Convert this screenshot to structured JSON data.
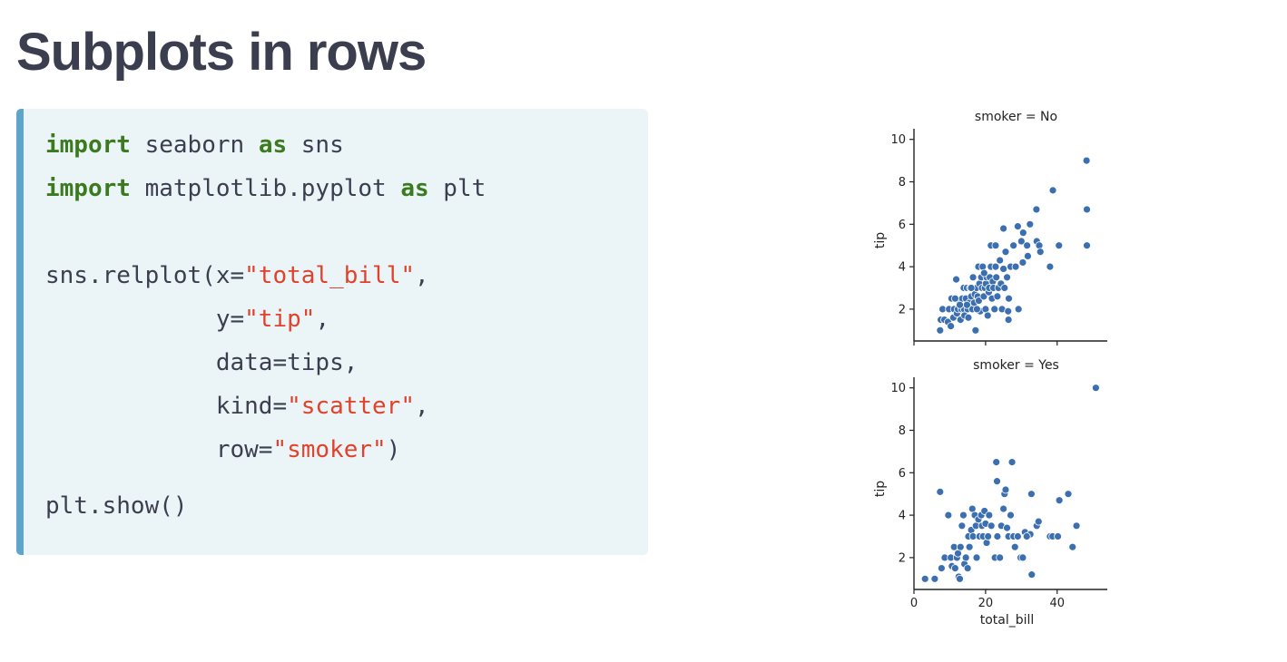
{
  "slide": {
    "title": "Subplots in rows"
  },
  "code": {
    "lines": [
      [
        {
          "t": "import",
          "c": "kw"
        },
        {
          "t": " seaborn "
        },
        {
          "t": "as",
          "c": "kw"
        },
        {
          "t": " sns"
        }
      ],
      [
        {
          "t": "import",
          "c": "kw"
        },
        {
          "t": " matplotlib.pyplot "
        },
        {
          "t": "as",
          "c": "kw"
        },
        {
          "t": " plt"
        }
      ],
      [],
      [
        {
          "t": "sns.relplot(x="
        },
        {
          "t": "\"total_bill\"",
          "c": "str"
        },
        {
          "t": ","
        }
      ],
      [
        {
          "t": "            y="
        },
        {
          "t": "\"tip\"",
          "c": "str"
        },
        {
          "t": ","
        }
      ],
      [
        {
          "t": "            data=tips,"
        }
      ],
      [
        {
          "t": "            kind="
        },
        {
          "t": "\"scatter\"",
          "c": "str"
        },
        {
          "t": ","
        }
      ],
      [
        {
          "t": "            row="
        },
        {
          "t": "\"smoker\"",
          "c": "str"
        },
        {
          "t": ")"
        }
      ],
      [
        {
          "t": "plt.show()"
        }
      ]
    ]
  },
  "colors": {
    "keyword": "#3b7a1f",
    "string": "#e2422b",
    "text": "#3b3e4f",
    "code_bg": "#ebf4f7",
    "code_border": "#5ea5c9",
    "point": "#3b6fb0"
  },
  "chart_data": [
    {
      "type": "scatter",
      "title": "smoker = No",
      "xlabel": "",
      "ylabel": "tip",
      "xlim": [
        0,
        54
      ],
      "ylim": [
        0.5,
        10.5
      ],
      "xticks": [
        0,
        20,
        40
      ],
      "xtick_labels_visible": false,
      "yticks": [
        2,
        4,
        6,
        8,
        10
      ],
      "points": [
        [
          7.3,
          1.0
        ],
        [
          7.5,
          1.5
        ],
        [
          8.5,
          1.5
        ],
        [
          8.0,
          2.0
        ],
        [
          9.5,
          1.4
        ],
        [
          9.8,
          2.0
        ],
        [
          10.3,
          1.2
        ],
        [
          10.5,
          2.5
        ],
        [
          11.0,
          1.6
        ],
        [
          11.2,
          2.0
        ],
        [
          11.8,
          3.4
        ],
        [
          12.0,
          1.8
        ],
        [
          12.3,
          2.0
        ],
        [
          12.6,
          2.4
        ],
        [
          13.0,
          1.5
        ],
        [
          13.3,
          2.0
        ],
        [
          13.5,
          2.5
        ],
        [
          13.9,
          3.0
        ],
        [
          14.0,
          2.0
        ],
        [
          14.1,
          1.7
        ],
        [
          14.5,
          2.5
        ],
        [
          14.8,
          3.0
        ],
        [
          15.0,
          2.0
        ],
        [
          15.2,
          1.6
        ],
        [
          15.5,
          2.3
        ],
        [
          15.7,
          3.0
        ],
        [
          16.0,
          2.6
        ],
        [
          16.3,
          2.0
        ],
        [
          16.5,
          3.5
        ],
        [
          16.8,
          2.3
        ],
        [
          17.0,
          2.7
        ],
        [
          17.2,
          1.0
        ],
        [
          17.5,
          3.0
        ],
        [
          17.8,
          2.6
        ],
        [
          18.0,
          4.0
        ],
        [
          18.1,
          2.4
        ],
        [
          18.3,
          3.2
        ],
        [
          18.5,
          1.9
        ],
        [
          18.8,
          3.5
        ],
        [
          19.0,
          3.0
        ],
        [
          19.2,
          4.0
        ],
        [
          19.5,
          2.6
        ],
        [
          19.8,
          3.0
        ],
        [
          20.0,
          2.0
        ],
        [
          20.1,
          3.2
        ],
        [
          20.3,
          3.5
        ],
        [
          20.6,
          1.7
        ],
        [
          20.9,
          2.8
        ],
        [
          21.0,
          3.0
        ],
        [
          21.2,
          3.5
        ],
        [
          21.5,
          4.0
        ],
        [
          21.8,
          2.5
        ],
        [
          22.0,
          3.3
        ],
        [
          22.2,
          3.0
        ],
        [
          22.5,
          2.0
        ],
        [
          22.8,
          4.0
        ],
        [
          23.0,
          3.5
        ],
        [
          23.3,
          2.6
        ],
        [
          23.6,
          3.0
        ],
        [
          24.0,
          4.3
        ],
        [
          24.3,
          3.2
        ],
        [
          24.6,
          2.0
        ],
        [
          25.0,
          3.9
        ],
        [
          25.3,
          3.0
        ],
        [
          25.6,
          4.7
        ],
        [
          26.0,
          3.5
        ],
        [
          26.3,
          1.9
        ],
        [
          26.5,
          2.5
        ],
        [
          27.0,
          4.0
        ],
        [
          21.5,
          5.0
        ],
        [
          22.8,
          5.0
        ],
        [
          25.0,
          5.8
        ],
        [
          26.4,
          1.5
        ],
        [
          27.8,
          5.0
        ],
        [
          28.4,
          4.0
        ],
        [
          29.2,
          2.0
        ],
        [
          29.0,
          5.9
        ],
        [
          30.0,
          5.2
        ],
        [
          30.5,
          5.6
        ],
        [
          30.4,
          4.2
        ],
        [
          31.6,
          5.0
        ],
        [
          31.8,
          4.5
        ],
        [
          32.4,
          6.0
        ],
        [
          34.2,
          6.7
        ],
        [
          34.3,
          5.2
        ],
        [
          35.0,
          5.0
        ],
        [
          35.3,
          4.7
        ],
        [
          38.0,
          4.0
        ],
        [
          38.8,
          7.6
        ],
        [
          40.5,
          5.0
        ],
        [
          48.2,
          9.0
        ],
        [
          48.3,
          6.7
        ],
        [
          48.3,
          5.0
        ],
        [
          16.0,
          3.0
        ],
        [
          14.8,
          2.2
        ],
        [
          17.6,
          2.0
        ],
        [
          19.6,
          3.7
        ],
        [
          12.8,
          2.2
        ],
        [
          11.5,
          2.5
        ]
      ]
    },
    {
      "type": "scatter",
      "title": "smoker = Yes",
      "xlabel": "total_bill",
      "ylabel": "tip",
      "xlim": [
        0,
        54
      ],
      "ylim": [
        0.5,
        10.5
      ],
      "xticks": [
        0,
        20,
        40
      ],
      "xtick_labels_visible": true,
      "yticks": [
        2,
        4,
        6,
        8,
        10
      ],
      "points": [
        [
          3.1,
          1.0
        ],
        [
          5.8,
          1.0
        ],
        [
          7.3,
          5.1
        ],
        [
          7.7,
          1.5
        ],
        [
          8.6,
          2.0
        ],
        [
          9.6,
          4.0
        ],
        [
          10.3,
          2.0
        ],
        [
          10.6,
          1.6
        ],
        [
          11.2,
          2.5
        ],
        [
          11.5,
          1.5
        ],
        [
          12.0,
          2.0
        ],
        [
          12.3,
          2.2
        ],
        [
          12.5,
          1.1
        ],
        [
          12.8,
          1.0
        ],
        [
          13.0,
          2.5
        ],
        [
          13.4,
          3.5
        ],
        [
          13.8,
          4.0
        ],
        [
          14.1,
          1.7
        ],
        [
          14.5,
          2.0
        ],
        [
          15.0,
          1.5
        ],
        [
          15.2,
          3.0
        ],
        [
          15.5,
          2.5
        ],
        [
          16.0,
          3.3
        ],
        [
          16.3,
          4.3
        ],
        [
          16.5,
          3.0
        ],
        [
          17.0,
          4.0
        ],
        [
          17.3,
          3.5
        ],
        [
          17.5,
          2.0
        ],
        [
          18.0,
          3.8
        ],
        [
          18.3,
          3.0
        ],
        [
          18.8,
          4.0
        ],
        [
          19.0,
          3.5
        ],
        [
          19.3,
          3.0
        ],
        [
          19.7,
          4.2
        ],
        [
          20.0,
          3.6
        ],
        [
          20.3,
          2.7
        ],
        [
          20.7,
          3.0
        ],
        [
          21.0,
          4.0
        ],
        [
          21.6,
          3.5
        ],
        [
          22.6,
          2.0
        ],
        [
          23.0,
          6.5
        ],
        [
          23.2,
          5.6
        ],
        [
          23.3,
          3.0
        ],
        [
          24.0,
          2.0
        ],
        [
          24.4,
          3.5
        ],
        [
          25.0,
          4.3
        ],
        [
          25.3,
          5.0
        ],
        [
          25.6,
          5.2
        ],
        [
          26.0,
          3.4
        ],
        [
          26.4,
          3.0
        ],
        [
          27.0,
          4.0
        ],
        [
          27.4,
          6.5
        ],
        [
          27.8,
          3.0
        ],
        [
          28.2,
          2.5
        ],
        [
          29.0,
          3.0
        ],
        [
          29.8,
          2.0
        ],
        [
          30.4,
          2.0
        ],
        [
          31.0,
          3.2
        ],
        [
          32.5,
          3.1
        ],
        [
          32.9,
          1.2
        ],
        [
          32.8,
          5.0
        ],
        [
          34.3,
          3.5
        ],
        [
          34.8,
          3.7
        ],
        [
          38.0,
          3.0
        ],
        [
          38.7,
          3.0
        ],
        [
          40.2,
          3.0
        ],
        [
          40.6,
          4.7
        ],
        [
          43.1,
          5.0
        ],
        [
          44.3,
          2.5
        ],
        [
          45.4,
          3.5
        ],
        [
          50.8,
          10.0
        ],
        [
          31.5,
          3.0
        ]
      ]
    }
  ]
}
